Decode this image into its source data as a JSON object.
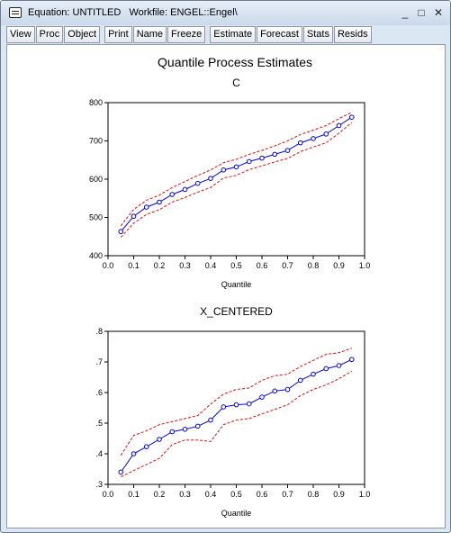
{
  "window": {
    "title": "Equation: UNTITLED   Workfile: ENGEL::Engel\\",
    "controls": {
      "minimize": "_",
      "maximize": "□",
      "close": "✕"
    }
  },
  "toolbar": {
    "buttons": [
      "View",
      "Proc",
      "Object",
      "Print",
      "Name",
      "Freeze",
      "Estimate",
      "Forecast",
      "Stats",
      "Resids"
    ]
  },
  "figure": {
    "title": "Quantile Process Estimates"
  },
  "chart_data": [
    {
      "type": "line",
      "title": "C",
      "xlabel": "Quantile",
      "ylabel": "",
      "x": [
        0.05,
        0.1,
        0.15,
        0.2,
        0.25,
        0.3,
        0.35,
        0.4,
        0.45,
        0.5,
        0.55,
        0.6,
        0.65,
        0.7,
        0.75,
        0.8,
        0.85,
        0.9,
        0.95
      ],
      "xlim": [
        0,
        1.0
      ],
      "ylim": [
        400,
        800
      ],
      "xticks": [
        "0.0",
        "0.1",
        "0.2",
        "0.3",
        "0.4",
        "0.5",
        "0.6",
        "0.7",
        "0.8",
        "0.9",
        "1.0"
      ],
      "yticks": [
        "400",
        "500",
        "600",
        "700",
        "800"
      ],
      "series": [
        {
          "color": "#0000ff",
          "style": "solid-markers",
          "values": [
            463,
            503,
            527,
            540,
            560,
            573,
            589,
            602,
            624,
            632,
            646,
            655,
            665,
            675,
            695,
            706,
            718,
            740,
            762
          ]
        },
        {
          "color": "#ff0000",
          "style": "dashed",
          "values": [
            478,
            521,
            545,
            558,
            578,
            594,
            610,
            624,
            643,
            652,
            665,
            675,
            687,
            700,
            717,
            728,
            740,
            758,
            775
          ]
        },
        {
          "color": "#ff0000",
          "style": "dashed",
          "values": [
            448,
            485,
            508,
            520,
            540,
            552,
            566,
            578,
            603,
            610,
            625,
            635,
            645,
            654,
            672,
            684,
            695,
            720,
            748
          ]
        }
      ]
    },
    {
      "type": "line",
      "title": "X_CENTERED",
      "xlabel": "Quantile",
      "ylabel": "",
      "x": [
        0.05,
        0.1,
        0.15,
        0.2,
        0.25,
        0.3,
        0.35,
        0.4,
        0.45,
        0.5,
        0.55,
        0.6,
        0.65,
        0.7,
        0.75,
        0.8,
        0.85,
        0.9,
        0.95
      ],
      "xlim": [
        0,
        1.0
      ],
      "ylim": [
        0.3,
        0.8
      ],
      "xticks": [
        "0.0",
        "0.1",
        "0.2",
        "0.3",
        "0.4",
        "0.5",
        "0.6",
        "0.7",
        "0.8",
        "0.9",
        "1.0"
      ],
      "yticks": [
        ".3",
        ".4",
        ".5",
        ".6",
        ".7",
        ".8"
      ],
      "series": [
        {
          "color": "#0000ff",
          "style": "solid-markers",
          "values": [
            0.34,
            0.4,
            0.423,
            0.447,
            0.472,
            0.48,
            0.49,
            0.51,
            0.553,
            0.56,
            0.563,
            0.585,
            0.605,
            0.61,
            0.64,
            0.66,
            0.678,
            0.688,
            0.708
          ]
        },
        {
          "color": "#ff0000",
          "style": "dashed",
          "values": [
            0.395,
            0.46,
            0.475,
            0.495,
            0.505,
            0.515,
            0.525,
            0.562,
            0.595,
            0.61,
            0.615,
            0.64,
            0.655,
            0.66,
            0.685,
            0.705,
            0.725,
            0.73,
            0.745
          ]
        },
        {
          "color": "#ff0000",
          "style": "dashed",
          "values": [
            0.325,
            0.345,
            0.365,
            0.385,
            0.43,
            0.445,
            0.445,
            0.44,
            0.495,
            0.51,
            0.515,
            0.53,
            0.545,
            0.56,
            0.59,
            0.61,
            0.625,
            0.645,
            0.67
          ]
        }
      ]
    }
  ]
}
